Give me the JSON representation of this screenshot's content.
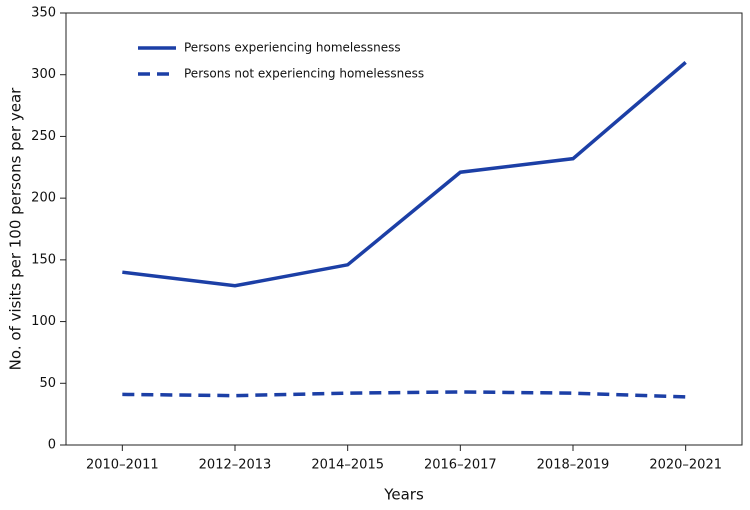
{
  "chart_data": {
    "type": "line",
    "xlabel": "Years",
    "ylabel": "No. of visits per 100 persons per year",
    "categories": [
      "2010–2011",
      "2012–2013",
      "2014–2015",
      "2016–2017",
      "2018–2019",
      "2020–2021"
    ],
    "series": [
      {
        "name": "Persons experiencing homelessness",
        "color": "#1c3fa6",
        "line_style": "solid",
        "values": [
          140,
          129,
          146,
          221,
          232,
          310
        ]
      },
      {
        "name": "Persons not experiencing homelessness",
        "color": "#1c3fa6",
        "line_style": "dashed",
        "values": [
          41,
          40,
          42,
          43,
          42,
          39
        ]
      }
    ],
    "ylim": [
      0,
      350
    ],
    "yticks": [
      0,
      50,
      100,
      150,
      200,
      250,
      300,
      350
    ],
    "grid": false,
    "legend": "upper left"
  }
}
